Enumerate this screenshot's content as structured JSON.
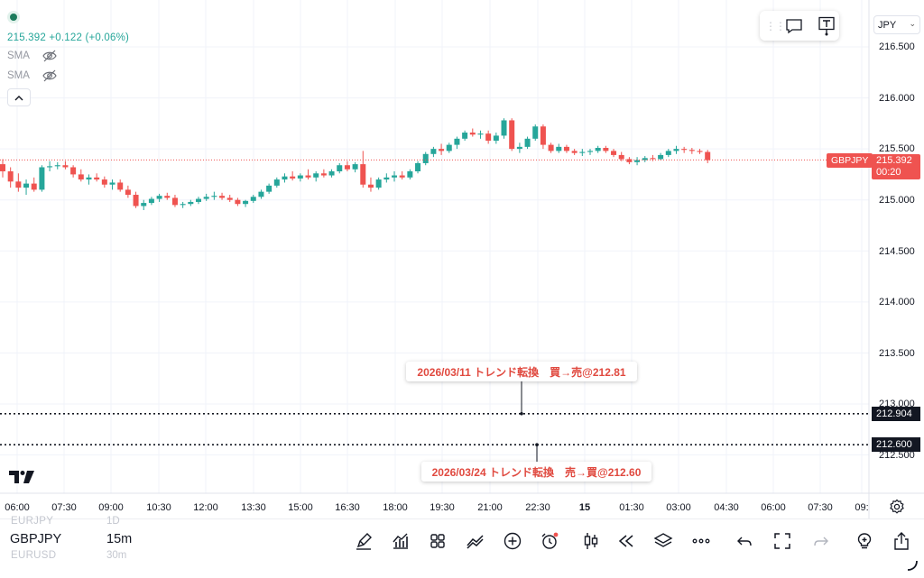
{
  "legend": {
    "price_line": "215.392  +0.122 (+0.06%)",
    "indicators": [
      "SMA",
      "SMA"
    ]
  },
  "toolbar_top": {
    "currency": "JPY"
  },
  "price_axis": {
    "labels": [
      "216.500",
      "216.000",
      "215.500",
      "215.000",
      "214.500",
      "214.000",
      "213.500",
      "213.000",
      "212.500"
    ],
    "current_symbol": "GBPJPY",
    "current_price": "215.392",
    "countdown": "00:20",
    "line1_price": "212.904",
    "line2_price": "212.600"
  },
  "time_axis": {
    "labels": [
      "06:00",
      "07:30",
      "09:00",
      "10:30",
      "12:00",
      "13:30",
      "15:00",
      "16:30",
      "18:00",
      "19:30",
      "21:00",
      "22:30",
      "15",
      "01:30",
      "03:00",
      "04:30",
      "06:00",
      "07:30",
      "09:"
    ]
  },
  "annotations": [
    {
      "text": "2026/03/11  トレンド転換　買→売@212.81"
    },
    {
      "text": "2026/03/24 トレンド転換　売→買@212.60"
    }
  ],
  "bottom": {
    "symbol_prev": "EURJPY",
    "symbol": "GBPJPY",
    "symbol_next": "EURUSD",
    "timeframe_prev": "1D",
    "timeframe": "15m",
    "timeframe_next": "30m"
  },
  "colors": {
    "up": "#26a69a",
    "down": "#ef5350",
    "annotation": "#e0493f"
  },
  "icons": [
    "pen-icon",
    "indicators-icon",
    "templates-icon",
    "compare-icon",
    "plus-icon",
    "alert-icon",
    "candles-icon",
    "replay-icon",
    "layers-icon",
    "more-icon",
    "undo-icon",
    "fullscreen-icon",
    "redo-icon",
    "idea-icon",
    "share-icon"
  ],
  "chart_data": {
    "type": "candlestick",
    "symbol": "GBPJPY",
    "interval": "15m",
    "ylim": [
      212.4,
      216.62
    ],
    "candles": [
      [
        215.35,
        215.4,
        215.22,
        215.28
      ],
      [
        215.28,
        215.32,
        215.12,
        215.18
      ],
      [
        215.18,
        215.26,
        215.08,
        215.12
      ],
      [
        215.12,
        215.2,
        215.05,
        215.16
      ],
      [
        215.16,
        215.22,
        215.08,
        215.1
      ],
      [
        215.1,
        215.34,
        215.08,
        215.32
      ],
      [
        215.32,
        215.38,
        215.28,
        215.33
      ],
      [
        215.33,
        215.37,
        215.3,
        215.34
      ],
      [
        215.34,
        215.38,
        215.3,
        215.32
      ],
      [
        215.32,
        215.34,
        215.22,
        215.25
      ],
      [
        215.25,
        215.3,
        215.18,
        215.2
      ],
      [
        215.2,
        215.25,
        215.15,
        215.22
      ],
      [
        215.22,
        215.26,
        215.18,
        215.2
      ],
      [
        215.2,
        215.23,
        215.12,
        215.15
      ],
      [
        215.15,
        215.2,
        215.1,
        215.17
      ],
      [
        215.17,
        215.2,
        215.08,
        215.1
      ],
      [
        215.1,
        215.14,
        215.02,
        215.05
      ],
      [
        215.05,
        215.08,
        214.92,
        214.94
      ],
      [
        214.94,
        215.0,
        214.9,
        214.97
      ],
      [
        214.97,
        215.03,
        214.95,
        215.01
      ],
      [
        215.01,
        215.06,
        214.98,
        215.04
      ],
      [
        215.04,
        215.07,
        215.0,
        215.02
      ],
      [
        215.02,
        215.05,
        214.93,
        214.95
      ],
      [
        214.95,
        214.98,
        214.92,
        214.96
      ],
      [
        214.96,
        215.0,
        214.94,
        214.98
      ],
      [
        214.98,
        215.03,
        214.96,
        215.01
      ],
      [
        215.01,
        215.06,
        214.99,
        215.03
      ],
      [
        215.03,
        215.08,
        215.0,
        215.04
      ],
      [
        215.04,
        215.07,
        215.0,
        215.02
      ],
      [
        215.02,
        215.05,
        214.98,
        215.0
      ],
      [
        215.0,
        215.02,
        214.94,
        214.96
      ],
      [
        214.96,
        215.0,
        214.93,
        214.99
      ],
      [
        214.99,
        215.05,
        214.97,
        215.03
      ],
      [
        215.03,
        215.1,
        215.01,
        215.08
      ],
      [
        215.08,
        215.16,
        215.06,
        215.14
      ],
      [
        215.14,
        215.22,
        215.12,
        215.2
      ],
      [
        215.2,
        215.26,
        215.17,
        215.23
      ],
      [
        215.23,
        215.28,
        215.19,
        215.21
      ],
      [
        215.21,
        215.26,
        215.18,
        215.24
      ],
      [
        215.24,
        215.3,
        215.2,
        215.22
      ],
      [
        215.22,
        215.28,
        215.18,
        215.26
      ],
      [
        215.26,
        215.3,
        215.22,
        215.24
      ],
      [
        215.24,
        215.3,
        215.22,
        215.28
      ],
      [
        215.28,
        215.36,
        215.26,
        215.34
      ],
      [
        215.34,
        215.38,
        215.28,
        215.3
      ],
      [
        215.3,
        215.37,
        215.27,
        215.35
      ],
      [
        215.35,
        215.48,
        215.12,
        215.15
      ],
      [
        215.15,
        215.22,
        215.08,
        215.12
      ],
      [
        215.12,
        215.22,
        215.1,
        215.2
      ],
      [
        215.2,
        215.26,
        215.17,
        215.22
      ],
      [
        215.22,
        215.28,
        215.18,
        215.24
      ],
      [
        215.24,
        215.28,
        215.2,
        215.22
      ],
      [
        215.22,
        215.3,
        215.2,
        215.28
      ],
      [
        215.28,
        215.38,
        215.26,
        215.36
      ],
      [
        215.36,
        215.47,
        215.34,
        215.45
      ],
      [
        215.45,
        215.52,
        215.42,
        215.5
      ],
      [
        215.5,
        215.55,
        215.44,
        215.48
      ],
      [
        215.48,
        215.56,
        215.46,
        215.54
      ],
      [
        215.54,
        215.62,
        215.5,
        215.6
      ],
      [
        215.6,
        215.68,
        215.58,
        215.66
      ],
      [
        215.66,
        215.7,
        215.62,
        215.64
      ],
      [
        215.64,
        215.68,
        215.6,
        215.65
      ],
      [
        215.65,
        215.68,
        215.55,
        215.58
      ],
      [
        215.58,
        215.66,
        215.55,
        215.63
      ],
      [
        215.63,
        215.8,
        215.6,
        215.78
      ],
      [
        215.78,
        215.8,
        215.48,
        215.5
      ],
      [
        215.5,
        215.56,
        215.46,
        215.52
      ],
      [
        215.52,
        215.62,
        215.5,
        215.6
      ],
      [
        215.6,
        215.74,
        215.58,
        215.72
      ],
      [
        215.72,
        215.74,
        215.5,
        215.54
      ],
      [
        215.54,
        215.56,
        215.46,
        215.48
      ],
      [
        215.48,
        215.55,
        215.46,
        215.52
      ],
      [
        215.52,
        215.54,
        215.46,
        215.48
      ],
      [
        215.48,
        215.5,
        215.44,
        215.46
      ],
      [
        215.46,
        215.5,
        215.43,
        215.47
      ],
      [
        215.47,
        215.5,
        215.44,
        215.48
      ],
      [
        215.48,
        215.53,
        215.46,
        215.51
      ],
      [
        215.51,
        215.53,
        215.46,
        215.48
      ],
      [
        215.48,
        215.5,
        215.42,
        215.44
      ],
      [
        215.44,
        215.47,
        215.38,
        215.4
      ],
      [
        215.4,
        215.42,
        215.35,
        215.37
      ],
      [
        215.37,
        215.42,
        215.34,
        215.39
      ],
      [
        215.39,
        215.43,
        215.37,
        215.41
      ],
      [
        215.41,
        215.44,
        215.38,
        215.4
      ],
      [
        215.4,
        215.46,
        215.39,
        215.44
      ],
      [
        215.44,
        215.5,
        215.42,
        215.48
      ],
      [
        215.48,
        215.53,
        215.45,
        215.5
      ],
      [
        215.5,
        215.52,
        215.46,
        215.49
      ],
      [
        215.49,
        215.51,
        215.45,
        215.48
      ],
      [
        215.48,
        215.5,
        215.45,
        215.47
      ],
      [
        215.47,
        215.49,
        215.36,
        215.39
      ]
    ]
  }
}
